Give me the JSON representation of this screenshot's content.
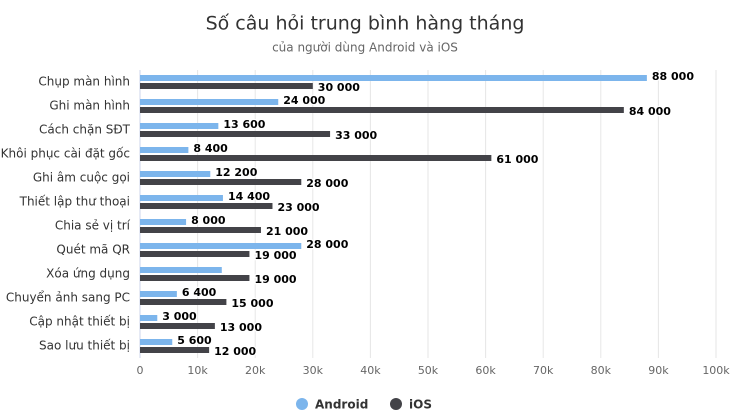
{
  "chart_data": {
    "type": "hbar",
    "title": "Số câu hỏi trung bình hàng tháng",
    "subtitle": "của người dùng Android và iOS",
    "categories": [
      "Chụp màn hình",
      "Ghi màn hình",
      "Cách chặn SĐT",
      "Khôi phục cài đặt gốc",
      "Ghi âm cuộc gọi",
      "Thiết lập thư thoại",
      "Chia sẻ vị trí",
      "Quét mã QR",
      "Xóa ứng dụng",
      "Chuyển ảnh sang PC",
      "Cập nhật thiết bị",
      "Sao lưu thiết bị"
    ],
    "series": [
      {
        "name": "Android",
        "color": "#7cb5ec",
        "values": [
          88000,
          24000,
          13600,
          8400,
          12200,
          14400,
          8000,
          28000,
          14200,
          6400,
          3000,
          5600
        ],
        "value_labels": [
          "88 000",
          "24 000",
          "13 600",
          "8 400",
          "12 200",
          "14 400",
          "8 000",
          "28 000",
          null,
          "6 400",
          "3 000",
          "5 600"
        ]
      },
      {
        "name": "iOS",
        "color": "#434348",
        "values": [
          30000,
          84000,
          33000,
          61000,
          28000,
          23000,
          21000,
          19000,
          19000,
          15000,
          13000,
          12000
        ],
        "value_labels": [
          "30 000",
          "84 000",
          "33 000",
          "61 000",
          "28 000",
          "23 000",
          "21 000",
          "19 000",
          "19 000",
          "15 000",
          "13 000",
          "12 000"
        ]
      }
    ],
    "xlim": [
      0,
      100000
    ],
    "xticks": [
      0,
      {
        "value": 10000,
        "label": "10k"
      },
      {
        "value": 20000,
        "label": "20k"
      },
      {
        "value": 30000,
        "label": "30k"
      },
      {
        "value": 40000,
        "label": "40k"
      },
      {
        "value": 50000,
        "label": "50k"
      },
      {
        "value": 60000,
        "label": "60k"
      },
      {
        "value": 70000,
        "label": "70k"
      },
      {
        "value": 80000,
        "label": "80k"
      },
      {
        "value": 90000,
        "label": "90k"
      },
      {
        "value": 100000,
        "label": "100k"
      }
    ],
    "grid": true,
    "legend": "bottom"
  }
}
